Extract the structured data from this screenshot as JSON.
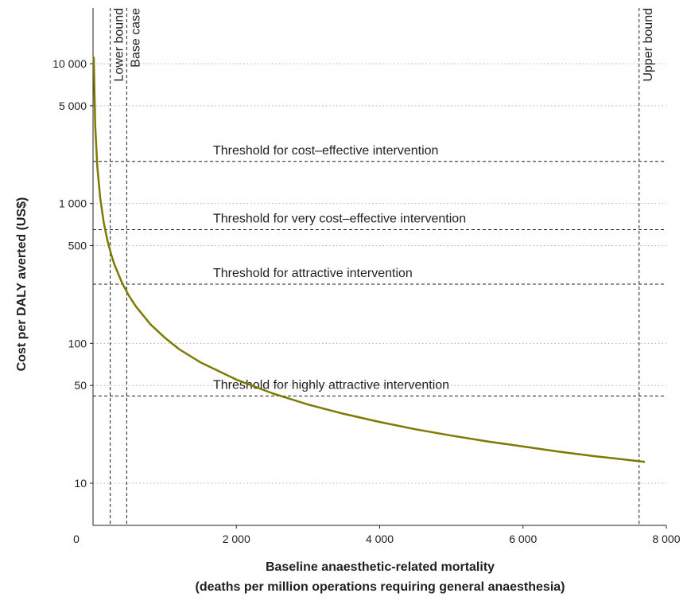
{
  "chart_data": {
    "type": "line",
    "xlabel_line1": "Baseline anaesthetic-related mortality",
    "xlabel_line2": "(deaths per million operations requiring general anaesthesia)",
    "ylabel": "Cost per DALY averted (US$)",
    "y_scale": "log",
    "x_range": [
      0,
      8000
    ],
    "y_range": [
      5,
      12000
    ],
    "x_ticks": [
      {
        "value": 2000,
        "label": "2 000"
      },
      {
        "value": 4000,
        "label": "4 000"
      },
      {
        "value": 6000,
        "label": "6 000"
      },
      {
        "value": 8000,
        "label": "8 000"
      }
    ],
    "origin_label": "0",
    "y_ticks": [
      {
        "value": 10,
        "label": "10"
      },
      {
        "value": 50,
        "label": "50"
      },
      {
        "value": 100,
        "label": "100"
      },
      {
        "value": 500,
        "label": "500"
      },
      {
        "value": 1000,
        "label": "1 000"
      },
      {
        "value": 5000,
        "label": "5 000"
      },
      {
        "value": 10000,
        "label": "10 000"
      }
    ],
    "grid": "horizontal dotted at y ticks",
    "series": [
      {
        "color": "#7d7a00",
        "points": [
          [
            10,
            11200
          ],
          [
            30,
            3650
          ],
          [
            60,
            1830
          ],
          [
            100,
            1100
          ],
          [
            150,
            730
          ],
          [
            200,
            548
          ],
          [
            250,
            438
          ],
          [
            300,
            365
          ],
          [
            400,
            274
          ],
          [
            500,
            219
          ],
          [
            600,
            183
          ],
          [
            800,
            137
          ],
          [
            1000,
            110
          ],
          [
            1200,
            91
          ],
          [
            1500,
            73
          ],
          [
            2000,
            55
          ],
          [
            2500,
            44
          ],
          [
            3000,
            36.5
          ],
          [
            3500,
            31.3
          ],
          [
            4000,
            27.4
          ],
          [
            4500,
            24.3
          ],
          [
            5000,
            21.9
          ],
          [
            5500,
            19.9
          ],
          [
            6000,
            18.3
          ],
          [
            6500,
            16.8
          ],
          [
            7000,
            15.6
          ],
          [
            7500,
            14.6
          ],
          [
            7700,
            14.2
          ]
        ]
      }
    ],
    "thresholds": [
      {
        "label": "Threshold for cost–effective intervention",
        "value": 2000
      },
      {
        "label": "Threshold for very cost–effective intervention",
        "value": 650
      },
      {
        "label": "Threshold for attractive intervention",
        "value": 265
      },
      {
        "label": "Threshold for highly attractive intervention",
        "value": 42
      }
    ],
    "reference_lines": [
      {
        "label": "Lower bound",
        "value": 240
      },
      {
        "label": "Base case",
        "value": 470
      },
      {
        "label": "Upper bound",
        "value": 7620
      }
    ]
  }
}
